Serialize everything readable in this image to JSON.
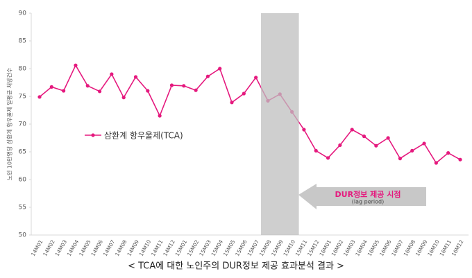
{
  "chart_data": {
    "type": "line",
    "y_axis_label": "노인 10만명당 삼환계 항우울제 일평균 처방건수",
    "categories": [
      "14M01",
      "14M02",
      "14M03",
      "14M04",
      "14M05",
      "14M06",
      "14M07",
      "14M08",
      "14M09",
      "14M10",
      "14M11",
      "14M12",
      "15M01",
      "15M02",
      "15M03",
      "15M04",
      "15M05",
      "15M06",
      "15M07",
      "15M08",
      "15M09",
      "15M10",
      "15M11",
      "15M12",
      "16M01",
      "16M02",
      "16M03",
      "16M04",
      "16M05",
      "16M06",
      "16M07",
      "16M08",
      "16M09",
      "16M10",
      "16M11",
      "16M12"
    ],
    "series": [
      {
        "name": "삼환계 항우울제(TCA)",
        "color": "#e5197e",
        "values": [
          74.9,
          76.7,
          76.0,
          80.6,
          76.9,
          75.9,
          79.0,
          74.8,
          78.5,
          76.0,
          71.5,
          77.0,
          76.9,
          76.1,
          78.6,
          80.0,
          73.9,
          75.5,
          78.4,
          74.2,
          75.4,
          72.2,
          69.0,
          65.2,
          63.9,
          66.2,
          69.0,
          67.8,
          66.1,
          67.5,
          63.8,
          65.2,
          66.5,
          63.0,
          64.8,
          63.6
        ]
      }
    ],
    "ylim": [
      50,
      90
    ],
    "yticks": [
      50,
      55,
      60,
      65,
      70,
      75,
      80,
      85,
      90
    ],
    "shaded_range": [
      "15M08",
      "15M10"
    ],
    "annotation": {
      "title": "DUR정보 제공 시점",
      "subtitle": "(lag period)"
    },
    "caption": "< TCA에 대한 노인주의 DUR정보 제공 효과분석 결과 >"
  }
}
